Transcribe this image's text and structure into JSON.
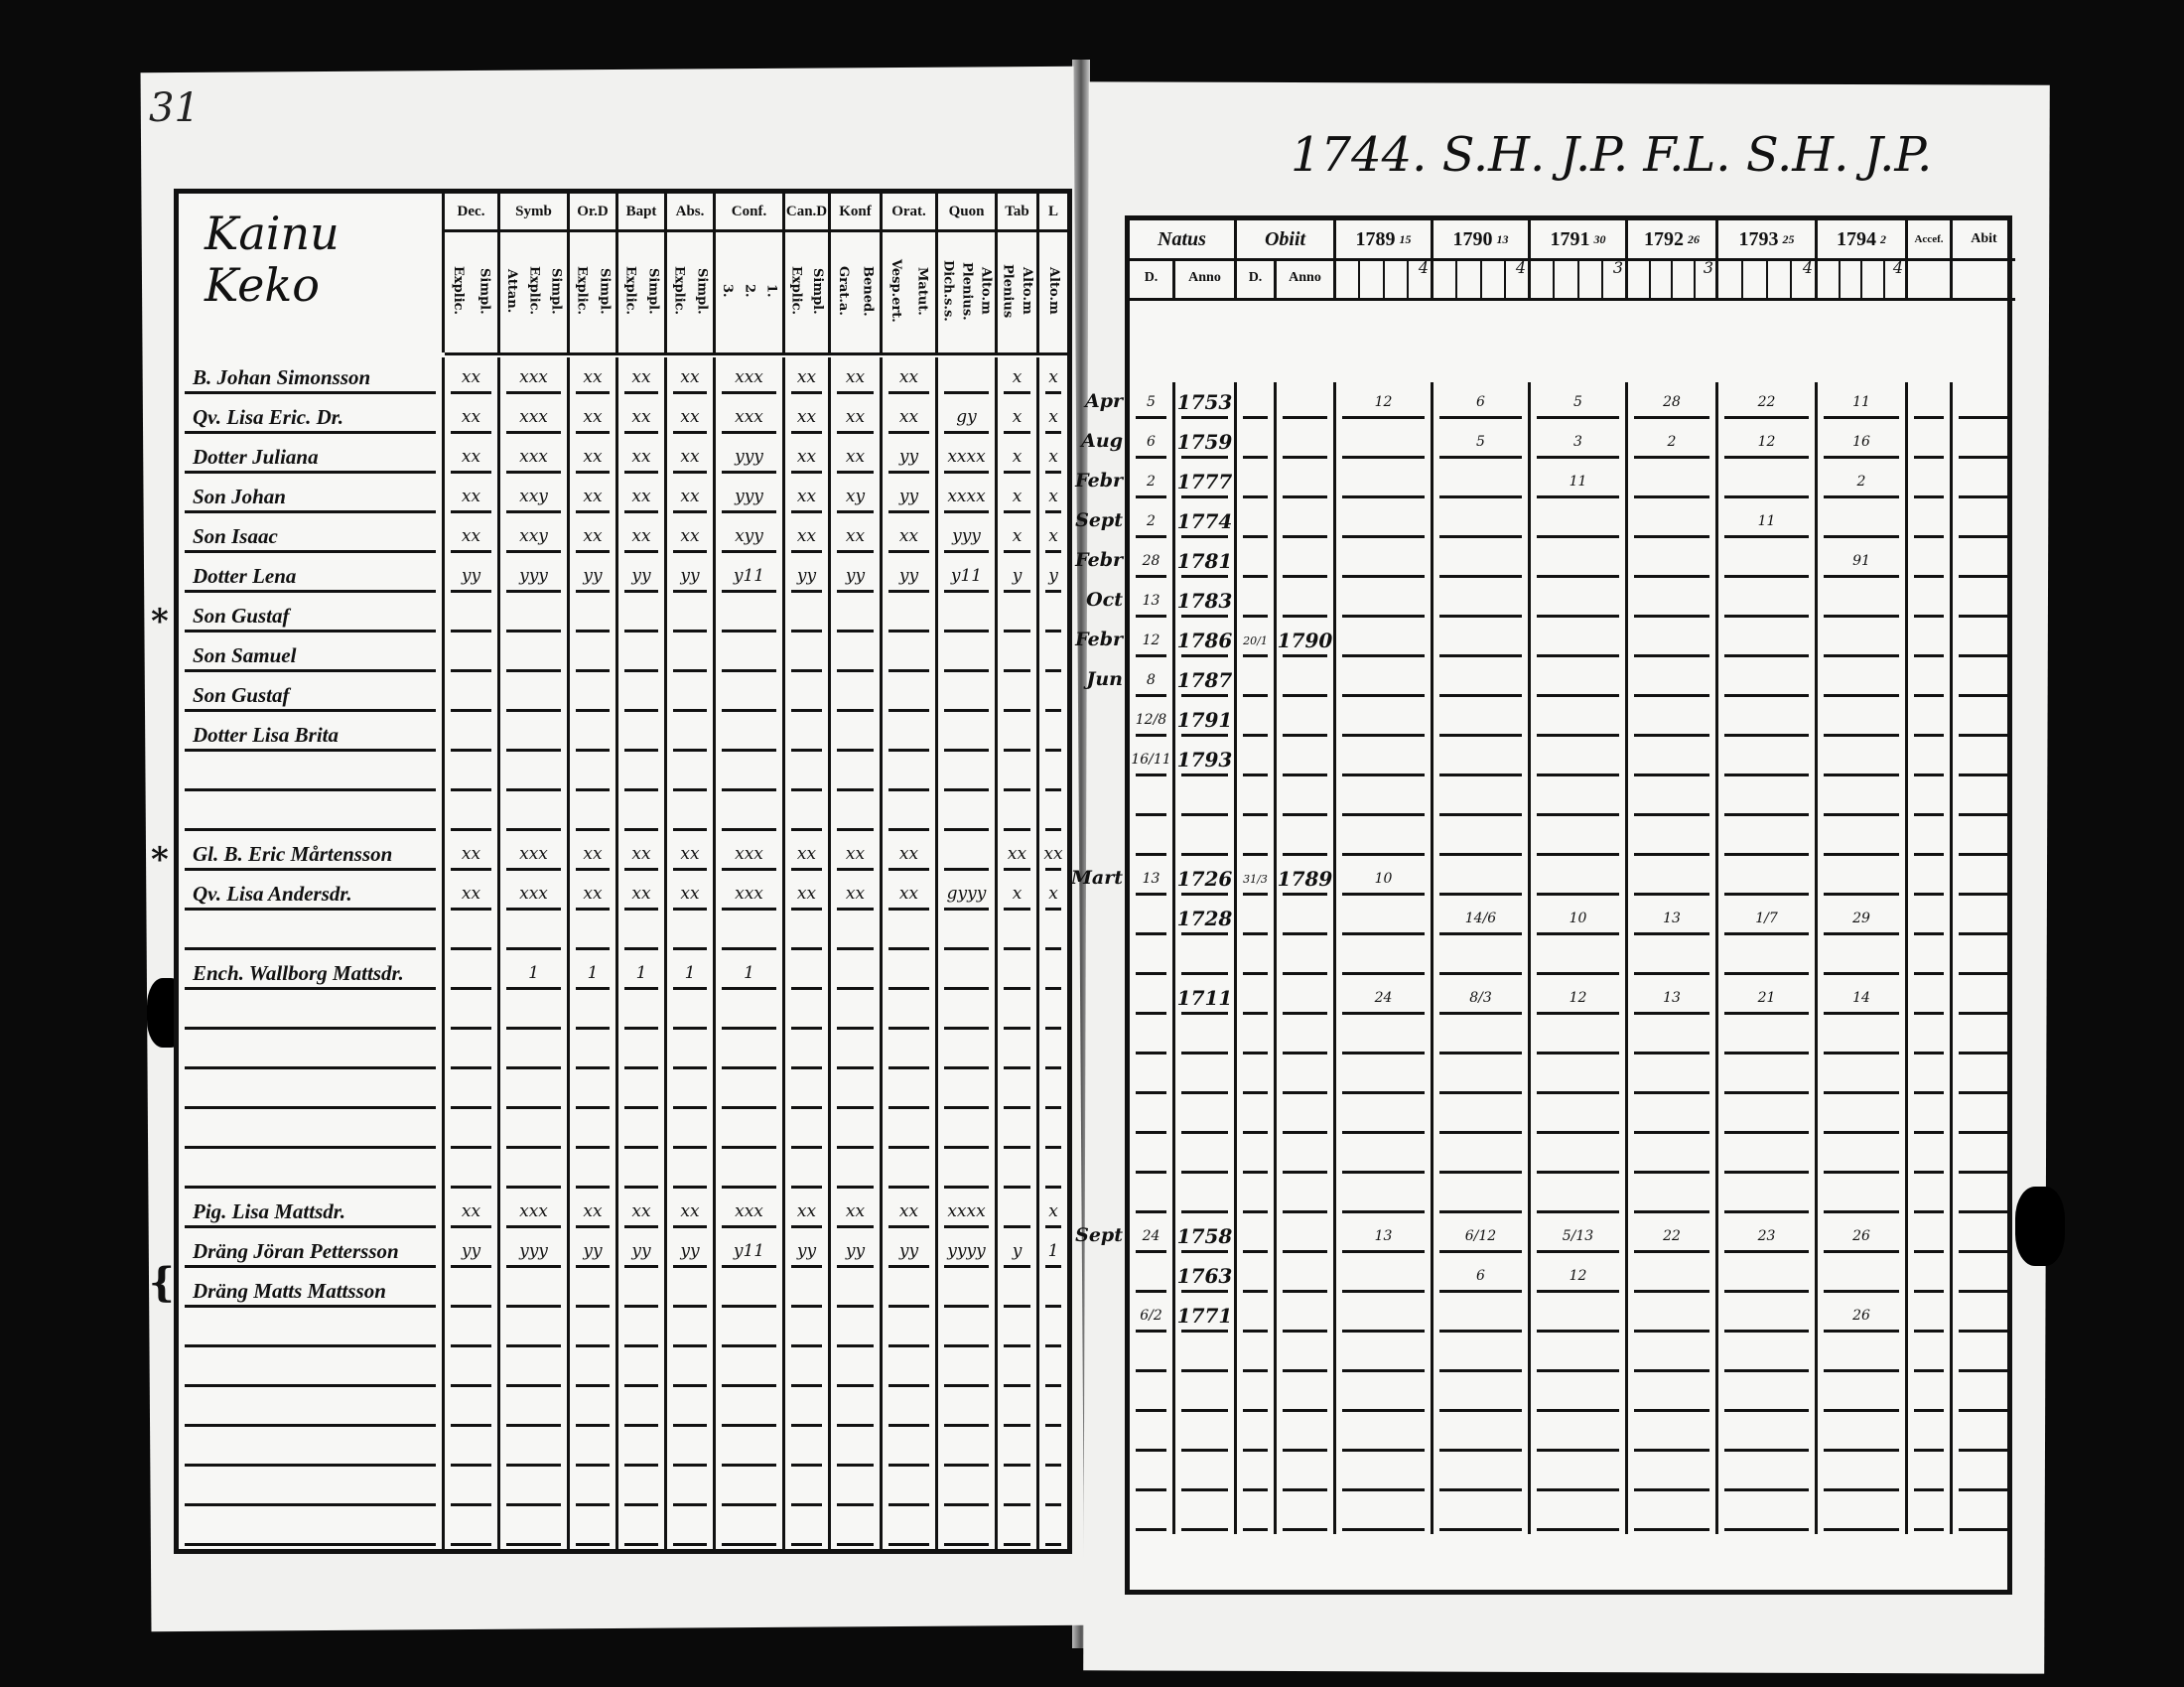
{
  "left_page": {
    "page_number": "31",
    "title": "Kainu Keko",
    "columns": [
      {
        "label": "Dec.",
        "sub": [
          "Explic.",
          "Simpl."
        ]
      },
      {
        "label": "Symb",
        "sub": [
          "Attan.",
          "Explic.",
          "Simpl."
        ]
      },
      {
        "label": "Or.D",
        "sub": [
          "Explic.",
          "Simpl."
        ]
      },
      {
        "label": "Bapt",
        "sub": [
          "Explic.",
          "Simpl."
        ]
      },
      {
        "label": "Abs.",
        "sub": [
          "Explic.",
          "Simpl."
        ]
      },
      {
        "label": "Conf.",
        "sub": [
          "3.",
          "2.",
          "1."
        ]
      },
      {
        "label": "Can.D",
        "sub": [
          "Explic.",
          "Simpl."
        ]
      },
      {
        "label": "Konf",
        "sub": [
          "Grat.a.",
          "Bened."
        ]
      },
      {
        "label": "Orat.",
        "sub": [
          "Vesp.ert.",
          "Matut."
        ]
      },
      {
        "label": "Quon",
        "sub": [
          "Dich.s.s.",
          "Plenius.",
          "Alto.m"
        ]
      },
      {
        "label": "Tab",
        "sub": [
          "Plenius",
          "Alto.m"
        ]
      },
      {
        "label": "L",
        "sub": [
          "Alto.m"
        ]
      }
    ],
    "rows": [
      {
        "name": "B. Johan Simonsson",
        "marks": [
          "xx",
          "xxx",
          "xx",
          "xx",
          "xx",
          "xxx",
          "xx",
          "xx",
          "xx",
          "",
          "x",
          "x"
        ]
      },
      {
        "name": "Qv. Lisa Eric. Dr.",
        "marks": [
          "xx",
          "xxx",
          "xx",
          "xx",
          "xx",
          "xxx",
          "xx",
          "xx",
          "xx",
          "gy",
          "x",
          "x"
        ]
      },
      {
        "name": "Dotter Juliana",
        "marks": [
          "xx",
          "xxx",
          "xx",
          "xx",
          "xx",
          "yyy",
          "xx",
          "xx",
          "yy",
          "xxxx",
          "x",
          "x"
        ]
      },
      {
        "name": "Son Johan",
        "marks": [
          "xx",
          "xxy",
          "xx",
          "xx",
          "xx",
          "yyy",
          "xx",
          "xy",
          "yy",
          "xxxx",
          "x",
          "x"
        ]
      },
      {
        "name": "Son Isaac",
        "marks": [
          "xx",
          "xxy",
          "xx",
          "xx",
          "xx",
          "xyy",
          "xx",
          "xx",
          "xx",
          "yyy",
          "x",
          "x"
        ]
      },
      {
        "name": "Dotter Lena",
        "marks": [
          "yy",
          "yyy",
          "yy",
          "yy",
          "yy",
          "y11",
          "yy",
          "yy",
          "yy",
          "y11",
          "y",
          "y"
        ]
      },
      {
        "name": "Son Gustaf",
        "marks": []
      },
      {
        "name": "Son Samuel",
        "marks": []
      },
      {
        "name": "Son Gustaf",
        "marks": []
      },
      {
        "name": "Dotter Lisa Brita",
        "marks": []
      },
      {
        "name": "",
        "marks": []
      },
      {
        "name": "",
        "marks": []
      },
      {
        "name": "Gl. B. Eric Mårtensson",
        "marks": [
          "xx",
          "xxx",
          "xx",
          "xx",
          "xx",
          "xxx",
          "xx",
          "xx",
          "xx",
          "",
          "xx",
          "xx"
        ]
      },
      {
        "name": "Qv. Lisa Andersdr.",
        "marks": [
          "xx",
          "xxx",
          "xx",
          "xx",
          "xx",
          "xxx",
          "xx",
          "xx",
          "xx",
          "gyyy",
          "x",
          "x"
        ]
      },
      {
        "name": "",
        "marks": []
      },
      {
        "name": "Ench. Wallborg Mattsdr.",
        "marks": [
          "",
          "1",
          "1",
          "1",
          "1",
          "1",
          "",
          "",
          "",
          "",
          "",
          ""
        ]
      },
      {
        "name": "",
        "marks": []
      },
      {
        "name": "",
        "marks": []
      },
      {
        "name": "",
        "marks": []
      },
      {
        "name": "",
        "marks": []
      },
      {
        "name": "",
        "marks": []
      },
      {
        "name": "Pig. Lisa Mattsdr.",
        "marks": [
          "xx",
          "xxx",
          "xx",
          "xx",
          "xx",
          "xxx",
          "xx",
          "xx",
          "xx",
          "xxxx",
          "",
          "x"
        ]
      },
      {
        "name": "Dräng Jöran Pettersson",
        "marks": [
          "yy",
          "yyy",
          "yy",
          "yy",
          "yy",
          "y11",
          "yy",
          "yy",
          "yy",
          "yyyy",
          "y",
          "1"
        ]
      },
      {
        "name": "Dräng Matts Mattsson",
        "marks": []
      },
      {
        "name": "",
        "marks": []
      },
      {
        "name": "",
        "marks": []
      },
      {
        "name": "",
        "marks": []
      },
      {
        "name": "",
        "marks": []
      },
      {
        "name": "",
        "marks": []
      },
      {
        "name": "",
        "marks": []
      }
    ]
  },
  "right_page": {
    "title": "1744. S.H. J.P. F.L. S.H. J.P.",
    "natus_label": "Natus",
    "obiit_label": "Obiit",
    "day_label": "D.",
    "anno_label": "Anno",
    "years": [
      {
        "label": "1789",
        "count": "15",
        "sub": "4"
      },
      {
        "label": "1790",
        "count": "13",
        "sub": "4"
      },
      {
        "label": "1791",
        "count": "30",
        "sub": "3"
      },
      {
        "label": "1792",
        "count": "26",
        "sub": "3"
      },
      {
        "label": "1793",
        "count": "25",
        "sub": "4"
      },
      {
        "label": "1794",
        "count": "2",
        "sub": "4"
      }
    ],
    "accef_label": "Accef.",
    "abit_label": "Abit",
    "rows": [
      {
        "month": "Apr",
        "day": "5",
        "year": "1753",
        "d_day": "",
        "d_year": "",
        "y": [
          "12",
          "6",
          "5",
          "28",
          "22",
          "11"
        ]
      },
      {
        "month": "Aug",
        "day": "6",
        "year": "1759",
        "d_day": "",
        "d_year": "",
        "y": [
          "",
          "5",
          "3",
          "2",
          "12",
          "16"
        ]
      },
      {
        "month": "Febr",
        "day": "2",
        "year": "1777",
        "d_day": "",
        "d_year": "",
        "y": [
          "",
          "",
          "11",
          "",
          "",
          "2"
        ]
      },
      {
        "month": "Sept",
        "day": "2",
        "year": "1774",
        "d_day": "",
        "d_year": "",
        "y": [
          "",
          "",
          "",
          "",
          "11",
          ""
        ]
      },
      {
        "month": "Febr",
        "day": "28",
        "year": "1781",
        "d_day": "",
        "d_year": "",
        "y": [
          "",
          "",
          "",
          "",
          "",
          "91"
        ]
      },
      {
        "month": "Oct",
        "day": "13",
        "year": "1783",
        "d_day": "",
        "d_year": "",
        "y": [
          "",
          "",
          "",
          "",
          "",
          ""
        ]
      },
      {
        "month": "Febr",
        "day": "12",
        "year": "1786",
        "d_day": "20/1",
        "d_year": "1790",
        "y": [
          "",
          "",
          "",
          "",
          "",
          ""
        ]
      },
      {
        "month": "Jun",
        "day": "8",
        "year": "1787",
        "d_day": "",
        "d_year": "",
        "y": [
          "",
          "",
          "",
          "",
          "",
          ""
        ]
      },
      {
        "month": "",
        "day": "12/8",
        "year": "1791",
        "d_day": "",
        "d_year": "",
        "y": [
          "",
          "",
          "",
          "",
          "",
          ""
        ]
      },
      {
        "month": "",
        "day": "16/11",
        "year": "1793",
        "d_day": "",
        "d_year": "",
        "y": [
          "",
          "",
          "",
          "",
          "",
          ""
        ]
      },
      {
        "month": "",
        "day": "",
        "year": "",
        "d_day": "",
        "d_year": "",
        "y": [
          "",
          "",
          "",
          "",
          "",
          ""
        ]
      },
      {
        "month": "",
        "day": "",
        "year": "",
        "d_day": "",
        "d_year": "",
        "y": [
          "",
          "",
          "",
          "",
          "",
          ""
        ]
      },
      {
        "month": "Mart",
        "day": "13",
        "year": "1726",
        "d_day": "31/3",
        "d_year": "1789",
        "y": [
          "10",
          "",
          "",
          "",
          "",
          ""
        ]
      },
      {
        "month": "",
        "day": "",
        "year": "1728",
        "d_day": "",
        "d_year": "",
        "y": [
          "",
          "14/6",
          "10",
          "13",
          "1/7",
          "29"
        ]
      },
      {
        "month": "",
        "day": "",
        "year": "",
        "d_day": "",
        "d_year": "",
        "y": [
          "",
          "",
          "",
          "",
          "",
          ""
        ]
      },
      {
        "month": "",
        "day": "",
        "year": "1711",
        "d_day": "",
        "d_year": "",
        "y": [
          "24",
          "8/3",
          "12",
          "13",
          "21",
          "14"
        ]
      },
      {
        "month": "",
        "day": "",
        "year": "",
        "d_day": "",
        "d_year": "",
        "y": [
          "",
          "",
          "",
          "",
          "",
          ""
        ]
      },
      {
        "month": "",
        "day": "",
        "year": "",
        "d_day": "",
        "d_year": "",
        "y": [
          "",
          "",
          "",
          "",
          "",
          ""
        ]
      },
      {
        "month": "",
        "day": "",
        "year": "",
        "d_day": "",
        "d_year": "",
        "y": [
          "",
          "",
          "",
          "",
          "",
          ""
        ]
      },
      {
        "month": "",
        "day": "",
        "year": "",
        "d_day": "",
        "d_year": "",
        "y": [
          "",
          "",
          "",
          "",
          "",
          ""
        ]
      },
      {
        "month": "",
        "day": "",
        "year": "",
        "d_day": "",
        "d_year": "",
        "y": [
          "",
          "",
          "",
          "",
          "",
          ""
        ]
      },
      {
        "month": "Sept",
        "day": "24",
        "year": "1758",
        "d_day": "",
        "d_year": "",
        "y": [
          "13",
          "6/12",
          "5/13",
          "22",
          "23",
          "26"
        ]
      },
      {
        "month": "",
        "day": "",
        "year": "1763",
        "d_day": "",
        "d_year": "",
        "y": [
          "",
          "6",
          "12",
          "",
          "",
          ""
        ]
      },
      {
        "month": "",
        "day": "6/2",
        "year": "1771",
        "d_day": "",
        "d_year": "",
        "y": [
          "",
          "",
          "",
          "",
          "",
          "26"
        ]
      },
      {
        "month": "",
        "day": "",
        "year": "",
        "d_day": "",
        "d_year": "",
        "y": [
          "",
          "",
          "",
          "",
          "",
          ""
        ]
      },
      {
        "month": "",
        "day": "",
        "year": "",
        "d_day": "",
        "d_year": "",
        "y": [
          "",
          "",
          "",
          "",
          "",
          ""
        ]
      },
      {
        "month": "",
        "day": "",
        "year": "",
        "d_day": "",
        "d_year": "",
        "y": [
          "",
          "",
          "",
          "",
          "",
          ""
        ]
      },
      {
        "month": "",
        "day": "",
        "year": "",
        "d_day": "",
        "d_year": "",
        "y": [
          "",
          "",
          "",
          "",
          "",
          ""
        ]
      },
      {
        "month": "",
        "day": "",
        "year": "",
        "d_day": "",
        "d_year": "",
        "y": [
          "",
          "",
          "",
          "",
          "",
          ""
        ]
      }
    ]
  }
}
